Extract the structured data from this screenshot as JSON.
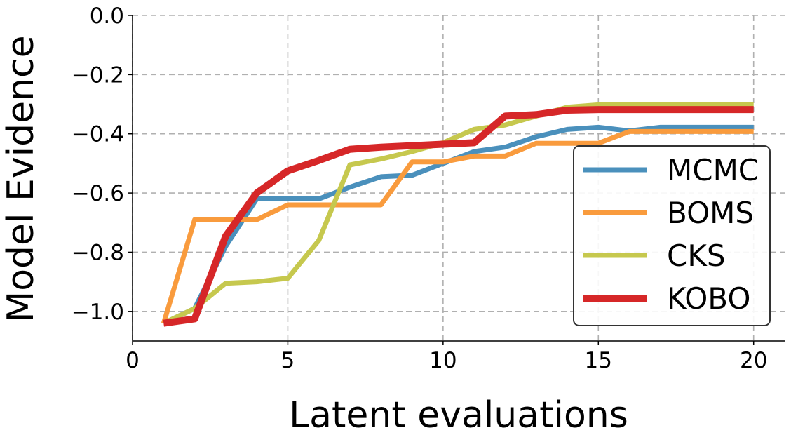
{
  "chart_data": {
    "type": "line",
    "title": "",
    "xlabel": "Latent evaluations",
    "ylabel": "Model Evidence",
    "xlim": [
      0,
      21
    ],
    "ylim": [
      -1.1,
      0.0
    ],
    "xticks": [
      0,
      5,
      10,
      15,
      20
    ],
    "yticks": [
      0.0,
      -0.2,
      -0.4,
      -0.6,
      -0.8,
      -1.0
    ],
    "xtick_labels": [
      "0",
      "5",
      "10",
      "15",
      "20"
    ],
    "ytick_labels": [
      "0.0",
      "−0.2",
      "−0.4",
      "−0.6",
      "−0.8",
      "−1.0"
    ],
    "grid": true,
    "legend_position": "lower-right",
    "x": [
      1,
      2,
      3,
      4,
      5,
      6,
      7,
      8,
      9,
      10,
      11,
      12,
      13,
      14,
      15,
      16,
      17,
      18,
      19,
      20
    ],
    "series": [
      {
        "name": "MCMC",
        "color": "#4a90bc",
        "values": [
          -1.04,
          -0.99,
          -0.78,
          -0.62,
          -0.62,
          -0.62,
          -0.58,
          -0.545,
          -0.54,
          -0.5,
          -0.46,
          -0.445,
          -0.41,
          -0.385,
          -0.378,
          -0.39,
          -0.378,
          -0.378,
          -0.378,
          -0.378
        ]
      },
      {
        "name": "BOMS",
        "color": "#f99b3d",
        "values": [
          -1.04,
          -0.69,
          -0.69,
          -0.69,
          -0.64,
          -0.64,
          -0.64,
          -0.64,
          -0.495,
          -0.495,
          -0.475,
          -0.475,
          -0.432,
          -0.432,
          -0.432,
          -0.392,
          -0.392,
          -0.392,
          -0.392,
          -0.392
        ]
      },
      {
        "name": "CKS",
        "color": "#c6c84e",
        "values": [
          -1.04,
          -0.99,
          -0.905,
          -0.9,
          -0.888,
          -0.76,
          -0.505,
          -0.485,
          -0.46,
          -0.43,
          -0.385,
          -0.37,
          -0.34,
          -0.31,
          -0.302,
          -0.302,
          -0.302,
          -0.302,
          -0.302,
          -0.302
        ]
      },
      {
        "name": "KOBO",
        "color": "#d62728",
        "values": [
          -1.04,
          -1.025,
          -0.745,
          -0.6,
          -0.525,
          -0.49,
          -0.452,
          -0.445,
          -0.44,
          -0.435,
          -0.43,
          -0.34,
          -0.335,
          -0.32,
          -0.318,
          -0.318,
          -0.318,
          -0.318,
          -0.318,
          -0.318
        ]
      }
    ]
  }
}
